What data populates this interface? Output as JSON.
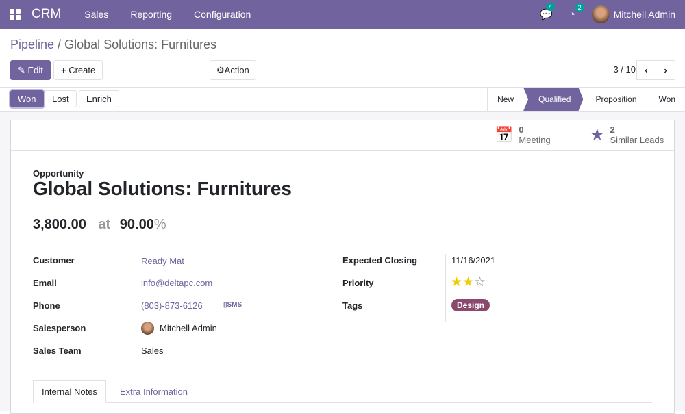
{
  "nav": {
    "app": "CRM",
    "menus": [
      "Sales",
      "Reporting",
      "Configuration"
    ],
    "messages_count": "4",
    "activities_count": "2",
    "user": "Mitchell Admin"
  },
  "breadcrumb": {
    "parent": "Pipeline",
    "current": "Global Solutions: Furnitures"
  },
  "toolbar": {
    "edit": "Edit",
    "create": "Create",
    "action": "Action",
    "pager": "3 / 10"
  },
  "status": {
    "buttons": [
      "Won",
      "Lost",
      "Enrich"
    ],
    "stages": [
      "New",
      "Qualified",
      "Proposition",
      "Won"
    ],
    "active_stage": "Qualified"
  },
  "smart_buttons": [
    {
      "count": "0",
      "label": "Meeting",
      "icon": "calendar-icon"
    },
    {
      "count": "2",
      "label": "Similar Leads",
      "icon": "star-icon"
    }
  ],
  "record": {
    "type": "Opportunity",
    "name": "Global Solutions: Furnitures",
    "revenue": "3,800.00",
    "at": "at",
    "probability": "90.00",
    "percent": "%"
  },
  "fields_left": [
    {
      "label": "Customer",
      "value": "Ready Mat"
    },
    {
      "label": "Email",
      "value": "info@deltapc.com"
    },
    {
      "label": "Phone",
      "value": "(803)-873-6126",
      "extra": "SMS"
    },
    {
      "label": "Salesperson",
      "value": "Mitchell Admin"
    },
    {
      "label": "Sales Team",
      "value": "Sales"
    }
  ],
  "fields_right": [
    {
      "label": "Expected Closing",
      "value": "11/16/2021"
    },
    {
      "label": "Priority",
      "stars": 2,
      "max": 3
    },
    {
      "label": "Tags",
      "value": "Design"
    }
  ],
  "colors": {
    "brand": "#71639e",
    "tag": "#8a4a6e",
    "star": "#f3cc00"
  },
  "tabs": [
    "Internal Notes",
    "Extra Information"
  ]
}
